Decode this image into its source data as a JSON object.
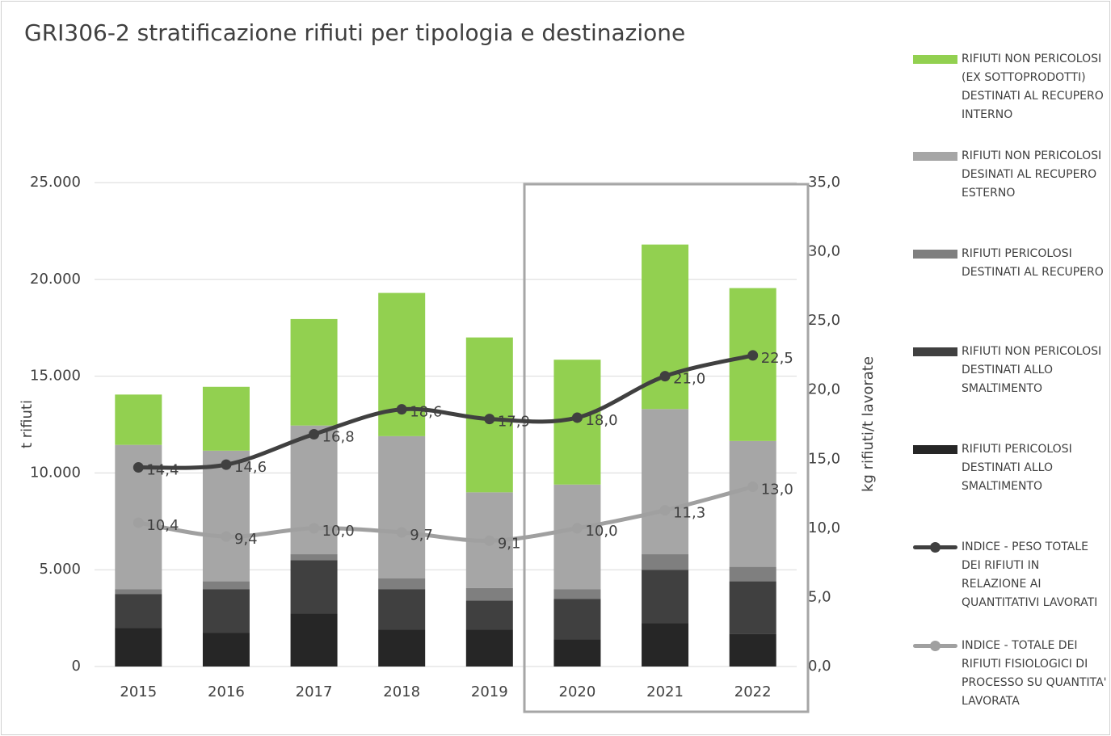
{
  "chart_data": {
    "type": "bar",
    "stacked": true,
    "title": "GRI306-2 stratificazione rifiuti per tipologia e destinazione",
    "y_label": "t rifiuti",
    "y2_label": "kg rifiuti/t lavorate",
    "categories": [
      "2015",
      "2016",
      "2017",
      "2018",
      "2019",
      "2020",
      "2021",
      "2022"
    ],
    "ylim": [
      0,
      25000
    ],
    "yticks": [
      0,
      {
        "value": 5000,
        "label": "5.000"
      },
      {
        "value": 10000,
        "label": "10.000"
      },
      {
        "value": 15000,
        "label": "15.000"
      },
      {
        "value": 20000,
        "label": "20.000"
      },
      {
        "value": 25000,
        "label": "25.000"
      }
    ],
    "y2lim": [
      0,
      35
    ],
    "y2ticks": [
      {
        "value": 0,
        "label": "0,0"
      },
      {
        "value": 5,
        "label": "5,0"
      },
      {
        "value": 10,
        "label": "10,0"
      },
      {
        "value": 15,
        "label": "15,0"
      },
      {
        "value": 20,
        "label": "20,0"
      },
      {
        "value": 25,
        "label": "25,0"
      },
      {
        "value": 30,
        "label": "30,0"
      },
      {
        "value": 35,
        "label": "35,0"
      }
    ],
    "grid": true,
    "legend": "right",
    "series": [
      {
        "name": "RIFIUTI NON PERICOLOSI (EX SOTTOPRODOTTI) DESTINATI AL RECUPERO INTERNO",
        "color": "#92d050",
        "values": [
          2600,
          3300,
          5500,
          7400,
          8000,
          6450,
          8500,
          7900
        ]
      },
      {
        "name": "RIFIUTI NON PERICOLOSI DESINATI AL RECUPERO ESTERNO",
        "color": "#a6a6a6",
        "values": [
          7450,
          6750,
          6650,
          7350,
          4950,
          5400,
          7500,
          6500
        ]
      },
      {
        "name": "RIFIUTI PERICOLOSI DESTINATI AL RECUPERO",
        "color": "#7f7f7f",
        "values": [
          250,
          400,
          300,
          550,
          650,
          500,
          800,
          750
        ]
      },
      {
        "name": "RIFIUTI NON PERICOLOSI DESTINATI ALLO SMALTIMENTO",
        "color": "#404040",
        "values": [
          1750,
          2250,
          2750,
          2100,
          1500,
          2100,
          2750,
          2700
        ]
      },
      {
        "name": "RIFIUTI PERICOLOSI DESTINATI ALLO SMALTIMENTO",
        "color": "#262626",
        "values": [
          2000,
          1750,
          2750,
          1900,
          1900,
          1400,
          2250,
          1700
        ]
      },
      {
        "name": "INDICE - PESO TOTALE DEI RIFIUTI IN RELAZIONE AI QUANTITATIVI LAVORATI",
        "color": "#404040",
        "type": "line",
        "axis": "y2",
        "values": [
          14.4,
          14.6,
          16.8,
          18.6,
          17.9,
          18.0,
          21.0,
          22.5
        ],
        "value_labels": [
          "14,4",
          "14,6",
          "16,8",
          "18,6",
          "17,9",
          "18,0",
          "21,0",
          "22,5"
        ]
      },
      {
        "name": "INDICE - TOTALE DEI RIFIUTI FISIOLOGICI DI PROCESSO SU QUANTITA' LAVORATA",
        "color": "#a0a0a0",
        "type": "line",
        "axis": "y2",
        "values": [
          10.4,
          9.4,
          10.0,
          9.7,
          9.1,
          10.0,
          11.3,
          13.0
        ],
        "value_labels": [
          "10,4",
          "9,4",
          "10,0",
          "9,7",
          "9,1",
          "10,0",
          "11,3",
          "13,0"
        ]
      }
    ]
  }
}
